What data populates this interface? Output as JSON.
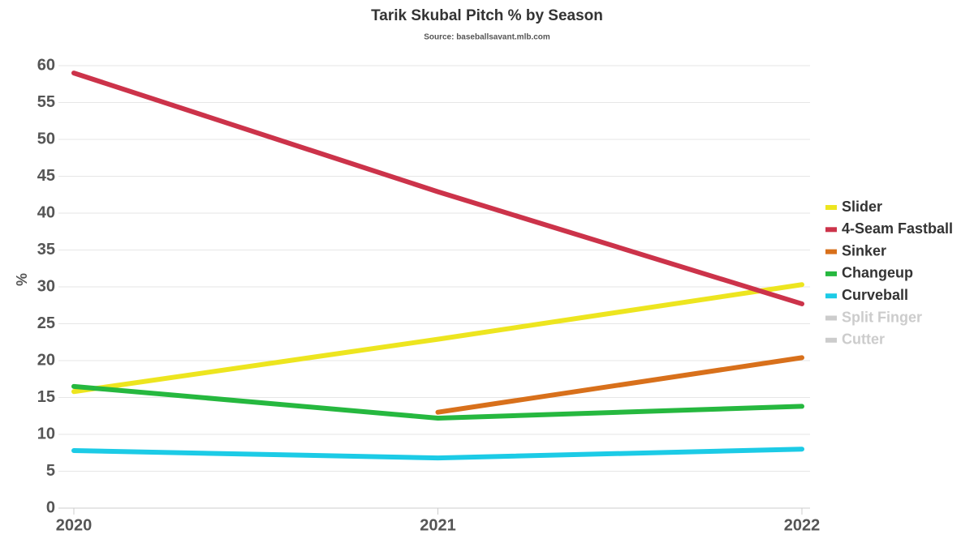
{
  "chart_data": {
    "type": "line",
    "title": "Tarik Skubal Pitch % by Season",
    "subtitle": "Source: baseballsavant.mlb.com",
    "y_label": "%",
    "categories": [
      "2020",
      "2021",
      "2022"
    ],
    "series": [
      {
        "name": "Slider",
        "color": "#ede51f",
        "values": [
          15.8,
          22.9,
          30.3
        ]
      },
      {
        "name": "4-Seam Fastball",
        "color": "#cc334a",
        "values": [
          59.0,
          42.9,
          27.7
        ]
      },
      {
        "name": "Sinker",
        "color": "#d8701b",
        "values": [
          null,
          13.0,
          20.4
        ]
      },
      {
        "name": "Changeup",
        "color": "#26b83f",
        "values": [
          16.5,
          12.2,
          13.8
        ]
      },
      {
        "name": "Curveball",
        "color": "#1ccbe6",
        "values": [
          7.8,
          6.8,
          8.0
        ]
      },
      {
        "name": "Split Finger",
        "color": "#cccccc",
        "hidden": true,
        "values": [
          null,
          null,
          null
        ]
      },
      {
        "name": "Cutter",
        "color": "#cccccc",
        "hidden": true,
        "values": [
          null,
          null,
          null
        ]
      }
    ],
    "ylim": [
      0,
      60
    ],
    "yticks": [
      0,
      5,
      10,
      15,
      20,
      25,
      30,
      35,
      40,
      45,
      50,
      55,
      60
    ],
    "grid": true,
    "legend": "right"
  }
}
